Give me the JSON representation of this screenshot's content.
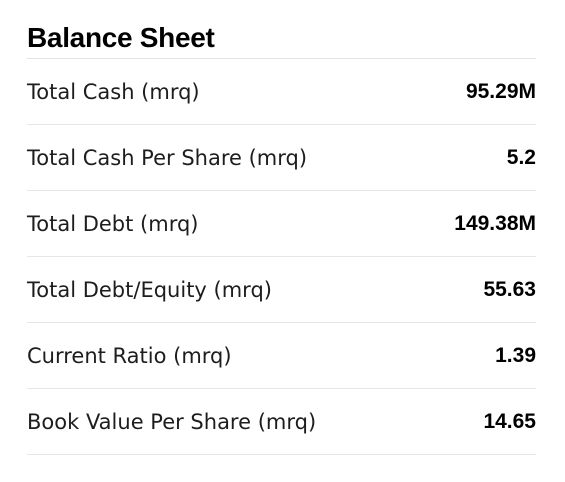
{
  "section": {
    "title": "Balance Sheet",
    "rows": [
      {
        "label": "Total Cash (mrq)",
        "value": "95.29M"
      },
      {
        "label": "Total Cash Per Share (mrq)",
        "value": "5.2"
      },
      {
        "label": "Total Debt (mrq)",
        "value": "149.38M"
      },
      {
        "label": "Total Debt/Equity (mrq)",
        "value": "55.63"
      },
      {
        "label": "Current Ratio (mrq)",
        "value": "1.39"
      },
      {
        "label": "Book Value Per Share (mrq)",
        "value": "14.65"
      }
    ]
  }
}
